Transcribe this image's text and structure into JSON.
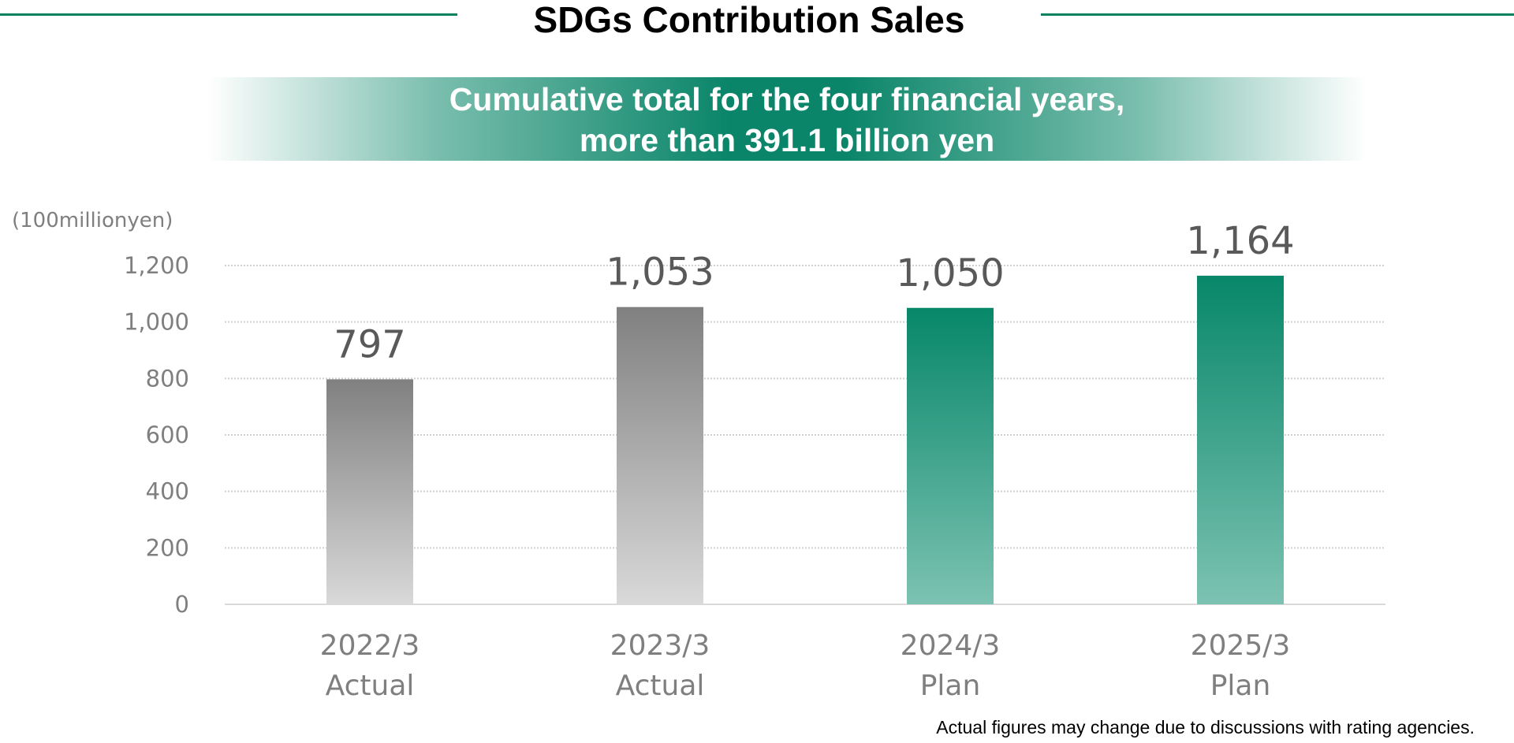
{
  "header": {
    "title": "SDGs Contribution Sales",
    "banner_line1": "Cumulative total for the four financial years,",
    "banner_line2": "more than 391.1 billion yen"
  },
  "chart_data": {
    "type": "bar",
    "ylabel": "(100millionyen)",
    "ylim": [
      0,
      1200
    ],
    "yticks": [
      "0",
      "200",
      "400",
      "600",
      "800",
      "1,000",
      "1,200"
    ],
    "grid": true,
    "categories": [
      {
        "year": "2022/3",
        "kind": "Actual"
      },
      {
        "year": "2023/3",
        "kind": "Actual"
      },
      {
        "year": "2024/3",
        "kind": "Plan"
      },
      {
        "year": "2025/3",
        "kind": "Plan"
      }
    ],
    "values": [
      797,
      1053,
      1050,
      1164
    ],
    "data_labels": [
      "797",
      "1,053",
      "1,050",
      "1,164"
    ],
    "colors": {
      "Actual": [
        "#808080",
        "#d9d9d9"
      ],
      "Plan": [
        "#078769",
        "#7cc2b2"
      ],
      "grid": "#d0d0d0",
      "tick_text": "#7f7f7f",
      "label_text": "#595959"
    }
  },
  "footnote": "Actual figures may change due to discussions with rating agencies."
}
